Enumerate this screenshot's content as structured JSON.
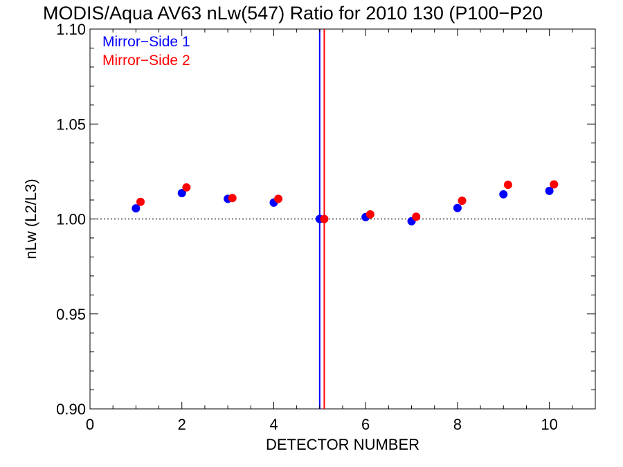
{
  "chart_data": {
    "type": "scatter",
    "title": "MODIS/Aqua AV63 nLw(547) Ratio for 2010 130 (P100−P20",
    "xlabel": "DETECTOR NUMBER",
    "ylabel": "nLw (L2/L3)",
    "xlim": [
      0,
      11
    ],
    "ylim": [
      0.9,
      1.1
    ],
    "xticks": [
      {
        "value": 0,
        "label": "0"
      },
      {
        "value": 2,
        "label": "2"
      },
      {
        "value": 4,
        "label": "4"
      },
      {
        "value": 6,
        "label": "6"
      },
      {
        "value": 8,
        "label": "8"
      },
      {
        "value": 10,
        "label": "10"
      }
    ],
    "yticks": [
      {
        "value": 0.9,
        "label": "0.90"
      },
      {
        "value": 0.95,
        "label": "0.95"
      },
      {
        "value": 1.0,
        "label": "1.00"
      },
      {
        "value": 1.05,
        "label": "1.05"
      },
      {
        "value": 1.1,
        "label": "1.10"
      }
    ],
    "reference_line_y": 1.0,
    "series": [
      {
        "name": "Mirror−Side 1",
        "color": "#0000ff",
        "x": [
          1,
          2,
          3,
          4,
          5,
          6,
          7,
          8,
          9,
          10
        ],
        "y": [
          1.0056,
          1.0136,
          1.0106,
          1.0086,
          1.0,
          1.001,
          0.9988,
          1.0058,
          1.013,
          1.0148
        ],
        "vline_x": 5.0
      },
      {
        "name": "Mirror−Side 2",
        "color": "#ff0000",
        "x": [
          1.1,
          2.1,
          3.1,
          4.1,
          5.1,
          6.1,
          7.1,
          8.1,
          9.1,
          10.1
        ],
        "y": [
          1.009,
          1.0166,
          1.011,
          1.0106,
          1.0,
          1.0024,
          1.0012,
          1.0096,
          1.018,
          1.0182
        ],
        "vline_x": 5.1
      }
    ],
    "grid": false,
    "legend_position": "top-left"
  }
}
